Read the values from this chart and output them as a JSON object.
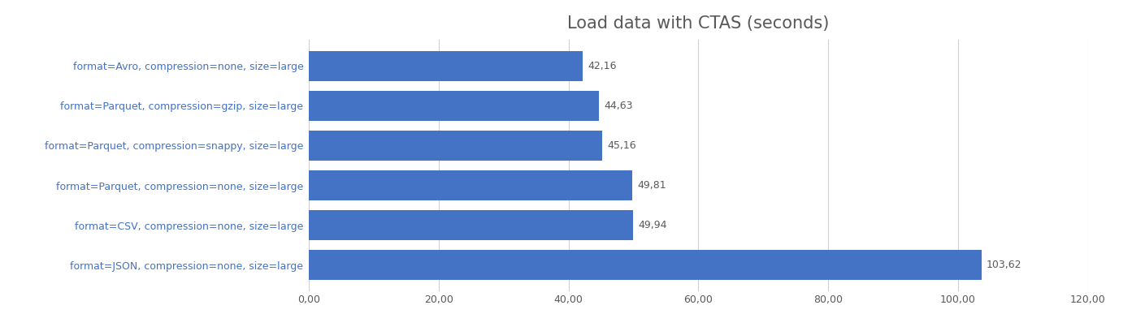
{
  "title": "Load data with CTAS (seconds)",
  "categories": [
    "format=JSON, compression=none, size=large",
    "format=CSV, compression=none, size=large",
    "format=Parquet, compression=none, size=large",
    "format=Parquet, compression=snappy, size=large",
    "format=Parquet, compression=gzip, size=large",
    "format=Avro, compression=none, size=large"
  ],
  "values": [
    103.62,
    49.94,
    49.81,
    45.16,
    44.63,
    42.16
  ],
  "labels": [
    "103,62",
    "49,94",
    "49,81",
    "45,16",
    "44,63",
    "42,16"
  ],
  "bar_color": "#4472C4",
  "bar_height": 0.75,
  "xlim": [
    0,
    120
  ],
  "xticks": [
    0,
    20,
    40,
    60,
    80,
    100,
    120
  ],
  "xtick_labels": [
    "0,00",
    "20,00",
    "40,00",
    "60,00",
    "80,00",
    "100,00",
    "120,00"
  ],
  "title_fontsize": 15,
  "label_fontsize": 9,
  "tick_fontsize": 9,
  "value_label_color": "#595959",
  "ylabel_color": "#4472C4",
  "title_color": "#595959",
  "grid_color": "#D0D0D0",
  "background_color": "#FFFFFF",
  "figsize": [
    14.09,
    4.08
  ],
  "dpi": 100
}
